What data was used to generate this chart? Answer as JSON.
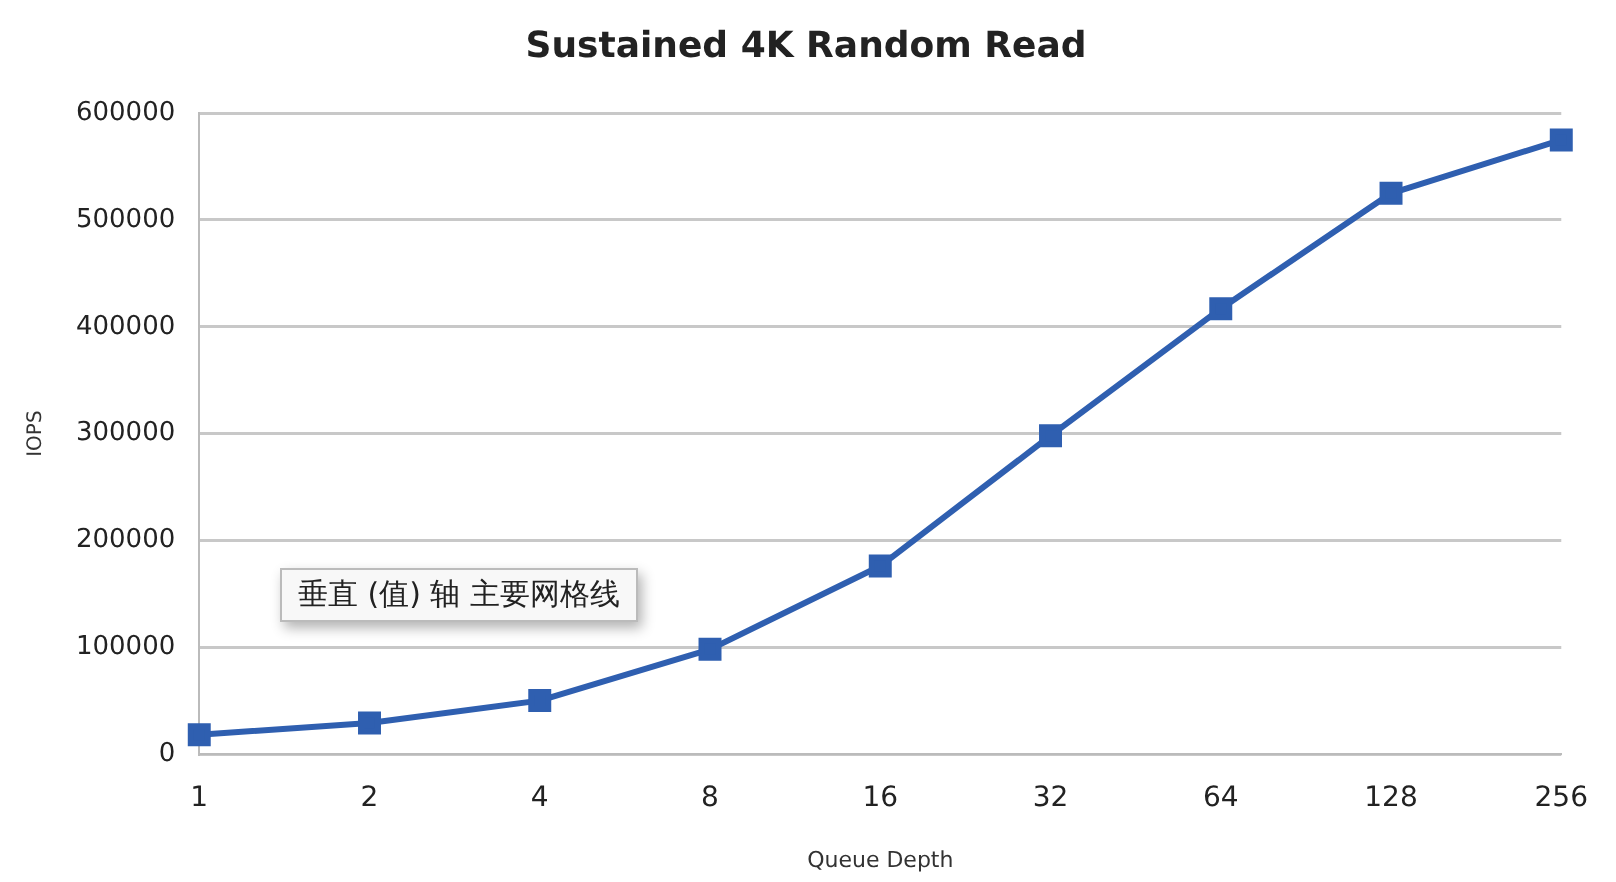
{
  "chart_data": {
    "type": "line",
    "title": "Sustained 4K Random Read",
    "xlabel": "Queue Depth",
    "ylabel": "IOPS",
    "categories": [
      "1",
      "2",
      "4",
      "8",
      "16",
      "32",
      "64",
      "128",
      "256"
    ],
    "series": [
      {
        "color": "#2f5fb0",
        "values": [
          18000,
          29000,
          50000,
          98000,
          176000,
          298000,
          417000,
          525000,
          575000
        ]
      }
    ],
    "ylim": [
      0,
      600000
    ],
    "yticks": [
      0,
      100000,
      200000,
      300000,
      400000,
      500000,
      600000
    ],
    "grid": "y",
    "legend": false,
    "marker": "square",
    "line_style": "solid",
    "annotations": [
      "垂直 (值) 轴 主要网格线"
    ]
  }
}
